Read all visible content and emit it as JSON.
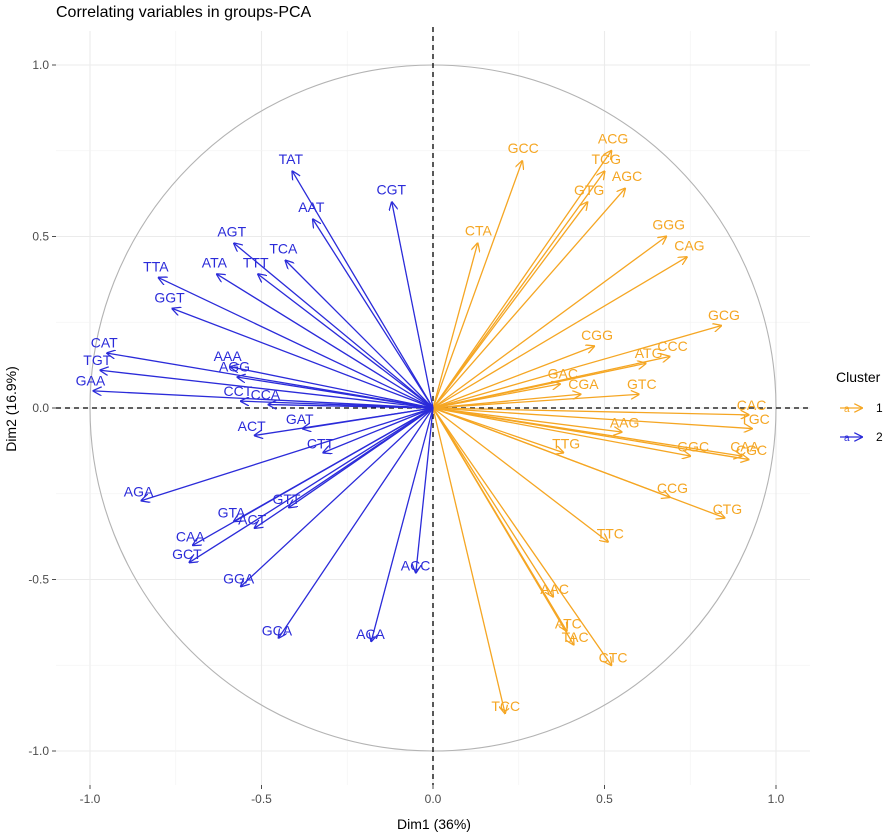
{
  "chart_data": {
    "type": "scatter",
    "title": "Correlating variables in groups-PCA",
    "xlabel": "Dim1 (36%)",
    "ylabel": "Dim2 (16.9%)",
    "xlim": [
      -1.0,
      1.0
    ],
    "ylim": [
      -1.0,
      1.0
    ],
    "x_ticks": [
      "-1.0",
      "-0.5",
      "0.0",
      "0.5",
      "1.0"
    ],
    "y_ticks": [
      "-1.0",
      "-0.5",
      "0.0",
      "0.5",
      "1.0"
    ],
    "grid": true,
    "legend": {
      "title": "Cluster",
      "position": "right",
      "entries": [
        "1",
        "2"
      ]
    },
    "colors": {
      "cluster_1": "#f5a623",
      "cluster_2": "#2b2bd9"
    },
    "series": [
      {
        "name": "1",
        "points": [
          {
            "label": "GCC",
            "x": 0.26,
            "y": 0.72
          },
          {
            "label": "ACG",
            "x": 0.52,
            "y": 0.75
          },
          {
            "label": "TCG",
            "x": 0.5,
            "y": 0.69
          },
          {
            "label": "AGC",
            "x": 0.56,
            "y": 0.64
          },
          {
            "label": "GTG",
            "x": 0.45,
            "y": 0.6
          },
          {
            "label": "GGG",
            "x": 0.68,
            "y": 0.5
          },
          {
            "label": "CTA",
            "x": 0.13,
            "y": 0.48
          },
          {
            "label": "CAG",
            "x": 0.74,
            "y": 0.44
          },
          {
            "label": "GCG",
            "x": 0.84,
            "y": 0.24
          },
          {
            "label": "CGG",
            "x": 0.47,
            "y": 0.18
          },
          {
            "label": "CCC",
            "x": 0.69,
            "y": 0.15
          },
          {
            "label": "ATG",
            "x": 0.62,
            "y": 0.13
          },
          {
            "label": "GAC",
            "x": 0.37,
            "y": 0.07
          },
          {
            "label": "CGA",
            "x": 0.43,
            "y": 0.04
          },
          {
            "label": "GTC",
            "x": 0.6,
            "y": 0.04
          },
          {
            "label": "CAC",
            "x": 0.92,
            "y": -0.02
          },
          {
            "label": "TGC",
            "x": 0.93,
            "y": -0.06
          },
          {
            "label": "AAG",
            "x": 0.55,
            "y": -0.07
          },
          {
            "label": "TTG",
            "x": 0.38,
            "y": -0.13
          },
          {
            "label": "GGC",
            "x": 0.75,
            "y": -0.14
          },
          {
            "label": "CAA",
            "x": 0.9,
            "y": -0.14
          },
          {
            "label": "CGC",
            "x": 0.92,
            "y": -0.15
          },
          {
            "label": "CCG",
            "x": 0.69,
            "y": -0.26
          },
          {
            "label": "CTG",
            "x": 0.85,
            "y": -0.32
          },
          {
            "label": "TTC",
            "x": 0.51,
            "y": -0.39
          },
          {
            "label": "AAC",
            "x": 0.35,
            "y": -0.55
          },
          {
            "label": "ATC",
            "x": 0.39,
            "y": -0.65
          },
          {
            "label": "TAC",
            "x": 0.41,
            "y": -0.69
          },
          {
            "label": "CTC",
            "x": 0.52,
            "y": -0.75
          },
          {
            "label": "TCC",
            "x": 0.21,
            "y": -0.89
          }
        ]
      },
      {
        "name": "2",
        "points": [
          {
            "label": "TAT",
            "x": -0.41,
            "y": 0.69
          },
          {
            "label": "CGT",
            "x": -0.12,
            "y": 0.6
          },
          {
            "label": "AAT",
            "x": -0.35,
            "y": 0.55
          },
          {
            "label": "AGT",
            "x": -0.58,
            "y": 0.48
          },
          {
            "label": "TCA",
            "x": -0.43,
            "y": 0.43
          },
          {
            "label": "ATA",
            "x": -0.63,
            "y": 0.39
          },
          {
            "label": "TTT",
            "x": -0.51,
            "y": 0.39
          },
          {
            "label": "TTA",
            "x": -0.8,
            "y": 0.38
          },
          {
            "label": "GGT",
            "x": -0.76,
            "y": 0.29
          },
          {
            "label": "CAT",
            "x": -0.95,
            "y": 0.16
          },
          {
            "label": "AAA",
            "x": -0.59,
            "y": 0.12
          },
          {
            "label": "AGG",
            "x": -0.57,
            "y": 0.09
          },
          {
            "label": "TGT",
            "x": -0.97,
            "y": 0.11
          },
          {
            "label": "GAA",
            "x": -0.99,
            "y": 0.05
          },
          {
            "label": "CCT",
            "x": -0.56,
            "y": 0.02
          },
          {
            "label": "CCA",
            "x": -0.48,
            "y": 0.01
          },
          {
            "label": "ACT",
            "x": -0.52,
            "y": -0.08
          },
          {
            "label": "GAT",
            "x": -0.38,
            "y": -0.06
          },
          {
            "label": "CTT",
            "x": -0.32,
            "y": -0.13
          },
          {
            "label": "AGA",
            "x": -0.85,
            "y": -0.27
          },
          {
            "label": "GTT",
            "x": -0.42,
            "y": -0.29
          },
          {
            "label": "GTA",
            "x": -0.58,
            "y": -0.33
          },
          {
            "label": "ACT",
            "x": -0.52,
            "y": -0.35
          },
          {
            "label": "CAA",
            "x": -0.7,
            "y": -0.4
          },
          {
            "label": "GCT",
            "x": -0.71,
            "y": -0.45
          },
          {
            "label": "GGA",
            "x": -0.56,
            "y": -0.52
          },
          {
            "label": "ACC",
            "x": -0.05,
            "y": -0.48
          },
          {
            "label": "GCA",
            "x": -0.45,
            "y": -0.67
          },
          {
            "label": "ACA",
            "x": -0.18,
            "y": -0.68
          }
        ]
      }
    ]
  }
}
